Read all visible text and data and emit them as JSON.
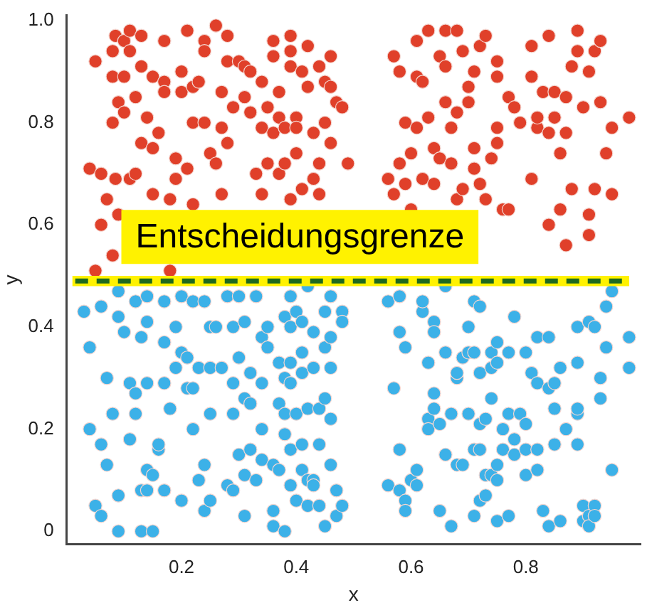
{
  "chart_data": {
    "type": "scatter",
    "xlabel": "x",
    "ylabel": "y",
    "xlim": [
      0,
      1
    ],
    "ylim": [
      -0.025,
      1.01
    ],
    "xticks": [
      0.2,
      0.4,
      0.6,
      0.8
    ],
    "yticks": [
      0,
      0.2,
      0.4,
      0.6,
      0.8,
      {
        "value": 1,
        "label": "1.0"
      }
    ],
    "grid": false,
    "legend": false,
    "marker": "circle",
    "bands": [
      {
        "axis": "y",
        "from": 0.48,
        "to": 0.5,
        "color": "#fff200"
      }
    ],
    "ref_lines": [
      {
        "axis": "y",
        "value": 0.49,
        "label": "Entscheidungsgrenze",
        "color": "#1f6a1f",
        "line_style": "dashed"
      }
    ],
    "series": [
      {
        "color": "#e0402a",
        "x": [
          0.04,
          0.05,
          0.05,
          0.06,
          0.06,
          0.07,
          0.08,
          0.08,
          0.08,
          0.085,
          0.085,
          0.09,
          0.08,
          0.09,
          0.1,
          0.1,
          0.1,
          0.11,
          0.11,
          0.11,
          0.12,
          0.12,
          0.13,
          0.13,
          0.13,
          0.14,
          0.15,
          0.15,
          0.15,
          0.16,
          0.17,
          0.17,
          0.17,
          0.18,
          0.18,
          0.19,
          0.19,
          0.2,
          0.2,
          0.21,
          0.21,
          0.22,
          0.22,
          0.22,
          0.23,
          0.24,
          0.24,
          0.24,
          0.25,
          0.26,
          0.26,
          0.27,
          0.27,
          0.27,
          0.28,
          0.28,
          0.28,
          0.29,
          0.3,
          0.31,
          0.31,
          0.32,
          0.32,
          0.33,
          0.34,
          0.34,
          0.34,
          0.35,
          0.35,
          0.36,
          0.36,
          0.36,
          0.37,
          0.37,
          0.37,
          0.38,
          0.38,
          0.39,
          0.39,
          0.39,
          0.39,
          0.4,
          0.4,
          0.4,
          0.41,
          0.41,
          0.42,
          0.42,
          0.43,
          0.43,
          0.44,
          0.44,
          0.44,
          0.45,
          0.45,
          0.46,
          0.46,
          0.46,
          0.47,
          0.48,
          0.49,
          0.56,
          0.57,
          0.57,
          0.58,
          0.58,
          0.59,
          0.59,
          0.6,
          0.6,
          0.61,
          0.61,
          0.61,
          0.62,
          0.62,
          0.63,
          0.63,
          0.64,
          0.64,
          0.65,
          0.65,
          0.66,
          0.66,
          0.66,
          0.67,
          0.67,
          0.68,
          0.68,
          0.68,
          0.69,
          0.69,
          0.7,
          0.7,
          0.71,
          0.71,
          0.71,
          0.72,
          0.72,
          0.73,
          0.73,
          0.74,
          0.75,
          0.75,
          0.75,
          0.75,
          0.76,
          0.77,
          0.77,
          0.78,
          0.79,
          0.81,
          0.81,
          0.81,
          0.82,
          0.82,
          0.83,
          0.84,
          0.84,
          0.84,
          0.85,
          0.85,
          0.86,
          0.86,
          0.87,
          0.87,
          0.87,
          0.88,
          0.88,
          0.89,
          0.89,
          0.9,
          0.91,
          0.91,
          0.91,
          0.92,
          0.92,
          0.93,
          0.93,
          0.94,
          0.95,
          0.95,
          0.98
        ],
        "values": [
          0.71,
          0.92,
          0.51,
          0.7,
          0.6,
          0.65,
          0.8,
          0.94,
          0.54,
          0.97,
          0.69,
          0.84,
          0.89,
          0.62,
          0.96,
          0.82,
          0.89,
          0.69,
          0.98,
          0.94,
          0.7,
          0.85,
          0.91,
          0.76,
          0.97,
          0.81,
          0.89,
          0.75,
          0.66,
          0.78,
          0.88,
          0.96,
          0.86,
          0.51,
          0.65,
          0.73,
          0.69,
          0.86,
          0.9,
          0.98,
          0.71,
          0.8,
          0.87,
          0.64,
          0.88,
          0.96,
          0.94,
          0.8,
          0.74,
          0.72,
          0.99,
          0.66,
          0.86,
          0.79,
          0.76,
          0.97,
          0.92,
          0.83,
          0.92,
          0.91,
          0.85,
          0.9,
          0.82,
          0.7,
          0.66,
          0.88,
          0.79,
          0.83,
          0.72,
          0.96,
          0.93,
          0.78,
          0.81,
          0.86,
          0.7,
          0.72,
          0.79,
          0.97,
          0.94,
          0.91,
          0.65,
          0.81,
          0.79,
          0.74,
          0.67,
          0.9,
          0.87,
          0.95,
          0.69,
          0.78,
          0.91,
          0.72,
          0.66,
          0.88,
          0.8,
          0.76,
          0.93,
          0.87,
          0.84,
          0.83,
          0.72,
          0.69,
          0.66,
          0.93,
          0.72,
          0.9,
          0.8,
          0.68,
          0.74,
          0.63,
          0.89,
          0.79,
          0.96,
          0.88,
          0.69,
          0.98,
          0.81,
          0.75,
          0.68,
          0.93,
          0.73,
          0.84,
          0.98,
          0.91,
          0.79,
          0.72,
          0.65,
          0.98,
          0.82,
          0.67,
          0.94,
          0.87,
          0.84,
          0.75,
          0.9,
          0.71,
          0.95,
          0.68,
          0.65,
          0.97,
          0.73,
          0.76,
          0.79,
          0.89,
          0.92,
          0.63,
          0.85,
          0.63,
          0.83,
          0.8,
          0.95,
          0.69,
          0.89,
          0.79,
          0.81,
          0.86,
          0.97,
          0.6,
          0.78,
          0.86,
          0.81,
          0.74,
          0.63,
          0.78,
          0.56,
          0.85,
          0.91,
          0.67,
          0.98,
          0.94,
          0.83,
          0.62,
          0.9,
          0.58,
          0.67,
          0.94,
          0.96,
          0.84,
          0.74,
          0.66,
          0.79,
          0.81
        ]
      },
      {
        "color": "#3cb1e8",
        "x": [
          0.03,
          0.04,
          0.04,
          0.06,
          0.06,
          0.05,
          0.06,
          0.07,
          0.07,
          0.08,
          0.09,
          0.09,
          0.09,
          0.1,
          0.11,
          0.11,
          0.09,
          0.12,
          0.12,
          0.12,
          0.13,
          0.13,
          0.13,
          0.14,
          0.14,
          0.14,
          0.14,
          0.14,
          0.15,
          0.15,
          0.16,
          0.16,
          0.17,
          0.17,
          0.17,
          0.17,
          0.18,
          0.19,
          0.2,
          0.19,
          0.2,
          0.2,
          0.21,
          0.21,
          0.22,
          0.22,
          0.22,
          0.23,
          0.23,
          0.24,
          0.24,
          0.24,
          0.25,
          0.25,
          0.25,
          0.25,
          0.26,
          0.27,
          0.28,
          0.28,
          0.29,
          0.29,
          0.29,
          0.29,
          0.3,
          0.3,
          0.3,
          0.31,
          0.31,
          0.31,
          0.31,
          0.32,
          0.32,
          0.32,
          0.33,
          0.33,
          0.34,
          0.34,
          0.34,
          0.34,
          0.35,
          0.35,
          0.36,
          0.36,
          0.37,
          0.36,
          0.37,
          0.37,
          0.38,
          0.38,
          0.38,
          0.38,
          0.38,
          0.39,
          0.39,
          0.39,
          0.39,
          0.39,
          0.39,
          0.4,
          0.4,
          0.41,
          0.41,
          0.41,
          0.4,
          0.41,
          0.41,
          0.42,
          0.42,
          0.42,
          0.43,
          0.43,
          0.42,
          0.43,
          0.43,
          0.44,
          0.44,
          0.44,
          0.45,
          0.45,
          0.45,
          0.45,
          0.46,
          0.46,
          0.46,
          0.46,
          0.46,
          0.47,
          0.47,
          0.48,
          0.48,
          0.48,
          0.56,
          0.56,
          0.57,
          0.58,
          0.58,
          0.58,
          0.58,
          0.59,
          0.59,
          0.59,
          0.6,
          0.61,
          0.61,
          0.62,
          0.62,
          0.63,
          0.63,
          0.63,
          0.64,
          0.64,
          0.64,
          0.64,
          0.65,
          0.65,
          0.66,
          0.66,
          0.66,
          0.67,
          0.67,
          0.68,
          0.68,
          0.68,
          0.69,
          0.69,
          0.7,
          0.7,
          0.7,
          0.71,
          0.71,
          0.71,
          0.71,
          0.72,
          0.72,
          0.72,
          0.72,
          0.72,
          0.73,
          0.73,
          0.73,
          0.74,
          0.74,
          0.74,
          0.74,
          0.75,
          0.75,
          0.75,
          0.75,
          0.75,
          0.76,
          0.76,
          0.77,
          0.77,
          0.77,
          0.78,
          0.78,
          0.78,
          0.79,
          0.8,
          0.8,
          0.8,
          0.8,
          0.81,
          0.82,
          0.82,
          0.82,
          0.82,
          0.83,
          0.84,
          0.84,
          0.84,
          0.85,
          0.85,
          0.85,
          0.86,
          0.86,
          0.87,
          0.89,
          0.89,
          0.89,
          0.89,
          0.89,
          0.9,
          0.9,
          0.91,
          0.91,
          0.91,
          0.92,
          0.92,
          0.92,
          0.93,
          0.93,
          0.94,
          0.94,
          0.95,
          0.95,
          0.98,
          0.98
        ],
        "values": [
          0.43,
          0.36,
          0.2,
          0.44,
          0.17,
          0.05,
          0.03,
          0.13,
          0.3,
          0.23,
          0,
          0.47,
          0.42,
          0.39,
          0.29,
          0.18,
          0.07,
          0.23,
          0.27,
          0.45,
          0.38,
          0.08,
          0,
          0.41,
          0.46,
          0.29,
          0.12,
          0.08,
          0,
          0.11,
          0.16,
          0.17,
          0.29,
          0.08,
          0.45,
          0.37,
          0.24,
          0.32,
          0.46,
          0.4,
          0.35,
          0.06,
          0.28,
          0.34,
          0.45,
          0.2,
          0.28,
          0.1,
          0.32,
          0.45,
          0.13,
          0.04,
          0.4,
          0.32,
          0.23,
          0.06,
          0.4,
          0.32,
          0.46,
          0.09,
          0.4,
          0.23,
          0.08,
          0.29,
          0.46,
          0.34,
          0.15,
          0.41,
          0.11,
          0.26,
          0.03,
          0.16,
          0.31,
          0.25,
          0.1,
          0.46,
          0.38,
          0.14,
          0.29,
          0.2,
          0.4,
          0.36,
          0.13,
          0.01,
          0.33,
          0.04,
          0.25,
          0.12,
          0.3,
          0.23,
          0.42,
          0.19,
          0,
          0.33,
          0.16,
          0.46,
          0.4,
          0.29,
          0.09,
          0.43,
          0.23,
          0.41,
          0.12,
          0.31,
          0.06,
          0.35,
          0.17,
          0.1,
          0.05,
          0.48,
          0.39,
          0.32,
          0.24,
          0.1,
          0.09,
          0.24,
          0.17,
          0.05,
          0.43,
          0.36,
          0.26,
          0.01,
          0.32,
          0.46,
          0.38,
          0.22,
          0.13,
          0.03,
          0.08,
          0.43,
          0.41,
          0.05,
          0.45,
          0.09,
          0.28,
          0.39,
          0.16,
          0.08,
          0.46,
          0.06,
          0.04,
          0.36,
          0.1,
          0.09,
          0.12,
          0.43,
          0.45,
          0.33,
          0.22,
          0.2,
          0.41,
          0.27,
          0.24,
          0.39,
          0.21,
          0.04,
          0.48,
          0.35,
          0.15,
          0.23,
          0.01,
          0.3,
          0.31,
          0.13,
          0.13,
          0.34,
          0.23,
          0.4,
          0.35,
          0.16,
          0.35,
          0.03,
          0.45,
          0.31,
          0.44,
          0.21,
          0.06,
          0.16,
          0.22,
          0.11,
          0.07,
          0.26,
          0.35,
          0.32,
          0.11,
          0.02,
          0.33,
          0.13,
          0.37,
          0.1,
          0.2,
          0.16,
          0.35,
          0.03,
          0.23,
          0.42,
          0.18,
          0.15,
          0.23,
          0.21,
          0.35,
          0.11,
          0.16,
          0.31,
          0.12,
          0.38,
          0.29,
          0.16,
          0.04,
          0.01,
          0.28,
          0.38,
          0.29,
          0.17,
          0.24,
          0.02,
          0.32,
          0.2,
          0.23,
          0.24,
          0.4,
          0.33,
          0.17,
          0.02,
          0.05,
          0.41,
          0.03,
          0.01,
          0.05,
          0.03,
          0.4,
          0.3,
          0.26,
          0.44,
          0.36,
          0.12,
          0.47,
          0.38,
          0.32
        ]
      }
    ]
  }
}
